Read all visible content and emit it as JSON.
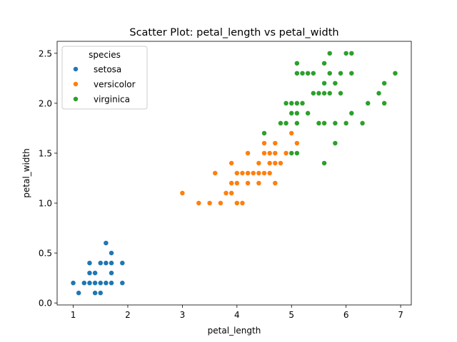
{
  "chart_data": {
    "type": "scatter",
    "title": "Scatter Plot: petal_length vs petal_width",
    "xlabel": "petal_length",
    "ylabel": "petal_width",
    "xlim": [
      0.705,
      7.195
    ],
    "ylim": [
      -0.02,
      2.62
    ],
    "xticks": [
      1,
      2,
      3,
      4,
      5,
      6,
      7
    ],
    "yticks": [
      0.0,
      0.5,
      1.0,
      1.5,
      2.0,
      2.5
    ],
    "legend": {
      "title": "species",
      "position": "top-left"
    },
    "grid": false,
    "series": [
      {
        "name": "setosa",
        "color": "#1f77b4",
        "points": [
          [
            1.0,
            0.2
          ],
          [
            1.1,
            0.1
          ],
          [
            1.2,
            0.2
          ],
          [
            1.3,
            0.2
          ],
          [
            1.3,
            0.3
          ],
          [
            1.3,
            0.4
          ],
          [
            1.4,
            0.1
          ],
          [
            1.4,
            0.2
          ],
          [
            1.4,
            0.3
          ],
          [
            1.5,
            0.1
          ],
          [
            1.5,
            0.2
          ],
          [
            1.5,
            0.4
          ],
          [
            1.6,
            0.2
          ],
          [
            1.6,
            0.4
          ],
          [
            1.6,
            0.6
          ],
          [
            1.7,
            0.2
          ],
          [
            1.7,
            0.3
          ],
          [
            1.7,
            0.4
          ],
          [
            1.7,
            0.5
          ],
          [
            1.9,
            0.2
          ],
          [
            1.9,
            0.4
          ]
        ]
      },
      {
        "name": "versicolor",
        "color": "#ff7f0e",
        "points": [
          [
            3.0,
            1.1
          ],
          [
            3.3,
            1.0
          ],
          [
            3.5,
            1.0
          ],
          [
            3.6,
            1.3
          ],
          [
            3.7,
            1.0
          ],
          [
            3.8,
            1.1
          ],
          [
            3.9,
            1.1
          ],
          [
            3.9,
            1.2
          ],
          [
            3.9,
            1.4
          ],
          [
            4.0,
            1.0
          ],
          [
            4.0,
            1.2
          ],
          [
            4.0,
            1.3
          ],
          [
            4.1,
            1.0
          ],
          [
            4.1,
            1.3
          ],
          [
            4.2,
            1.2
          ],
          [
            4.2,
            1.3
          ],
          [
            4.2,
            1.5
          ],
          [
            4.3,
            1.3
          ],
          [
            4.4,
            1.2
          ],
          [
            4.4,
            1.3
          ],
          [
            4.4,
            1.4
          ],
          [
            4.5,
            1.3
          ],
          [
            4.5,
            1.5
          ],
          [
            4.5,
            1.6
          ],
          [
            4.6,
            1.3
          ],
          [
            4.6,
            1.4
          ],
          [
            4.6,
            1.5
          ],
          [
            4.7,
            1.2
          ],
          [
            4.7,
            1.4
          ],
          [
            4.7,
            1.5
          ],
          [
            4.7,
            1.6
          ],
          [
            4.8,
            1.4
          ],
          [
            4.8,
            1.8
          ],
          [
            4.9,
            1.5
          ],
          [
            5.0,
            1.7
          ],
          [
            5.1,
            1.6
          ]
        ]
      },
      {
        "name": "virginica",
        "color": "#2ca02c",
        "points": [
          [
            4.5,
            1.7
          ],
          [
            4.8,
            1.8
          ],
          [
            4.9,
            1.8
          ],
          [
            4.9,
            2.0
          ],
          [
            5.0,
            1.5
          ],
          [
            5.0,
            1.9
          ],
          [
            5.0,
            2.0
          ],
          [
            5.1,
            1.5
          ],
          [
            5.1,
            1.8
          ],
          [
            5.1,
            1.9
          ],
          [
            5.1,
            2.0
          ],
          [
            5.1,
            2.3
          ],
          [
            5.1,
            2.4
          ],
          [
            5.2,
            2.0
          ],
          [
            5.2,
            2.3
          ],
          [
            5.3,
            1.9
          ],
          [
            5.3,
            2.3
          ],
          [
            5.4,
            2.1
          ],
          [
            5.4,
            2.3
          ],
          [
            5.5,
            1.8
          ],
          [
            5.5,
            2.1
          ],
          [
            5.6,
            1.4
          ],
          [
            5.6,
            1.8
          ],
          [
            5.6,
            2.1
          ],
          [
            5.6,
            2.2
          ],
          [
            5.6,
            2.4
          ],
          [
            5.7,
            2.1
          ],
          [
            5.7,
            2.3
          ],
          [
            5.7,
            2.5
          ],
          [
            5.8,
            1.6
          ],
          [
            5.8,
            1.8
          ],
          [
            5.8,
            2.2
          ],
          [
            5.9,
            2.1
          ],
          [
            5.9,
            2.3
          ],
          [
            6.0,
            1.8
          ],
          [
            6.0,
            2.5
          ],
          [
            6.1,
            1.9
          ],
          [
            6.1,
            2.3
          ],
          [
            6.1,
            2.5
          ],
          [
            6.3,
            1.8
          ],
          [
            6.4,
            2.0
          ],
          [
            6.6,
            2.1
          ],
          [
            6.7,
            2.0
          ],
          [
            6.7,
            2.2
          ],
          [
            6.9,
            2.3
          ]
        ]
      }
    ]
  }
}
